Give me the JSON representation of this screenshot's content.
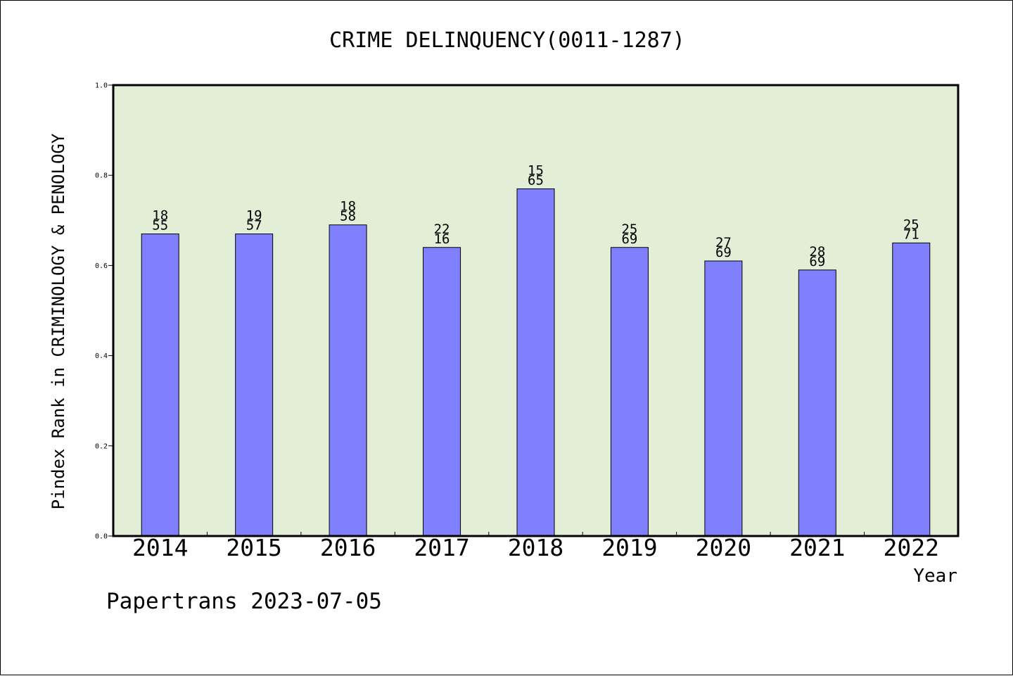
{
  "chart_data": {
    "type": "bar",
    "title": "CRIME DELINQUENCY(0011-1287)",
    "xlabel": "Year",
    "ylabel": "Pindex Rank in CRIMINOLOGY & PENOLOGY",
    "categories": [
      "2014",
      "2015",
      "2016",
      "2017",
      "2018",
      "2019",
      "2020",
      "2021",
      "2022"
    ],
    "values": [
      0.67,
      0.67,
      0.69,
      0.64,
      0.77,
      0.64,
      0.61,
      0.59,
      0.65
    ],
    "bar_labels": [
      [
        "18",
        "55"
      ],
      [
        "19",
        "57"
      ],
      [
        "18",
        "58"
      ],
      [
        "22",
        "16"
      ],
      [
        "15",
        "65"
      ],
      [
        "25",
        "69"
      ],
      [
        "27",
        "69"
      ],
      [
        "28",
        "69"
      ],
      [
        "25",
        "71"
      ]
    ],
    "ylim": [
      0,
      1.0
    ],
    "yticks": [
      "0.0",
      "0.2",
      "0.4",
      "0.6",
      "0.8",
      "1.0"
    ],
    "grid": false,
    "legend": "none",
    "colors": {
      "bar": "#8080ff",
      "plot_background": "#e2efd6",
      "axis": "#000000"
    }
  },
  "footer": {
    "credit": "Papertrans 2023-07-05"
  }
}
